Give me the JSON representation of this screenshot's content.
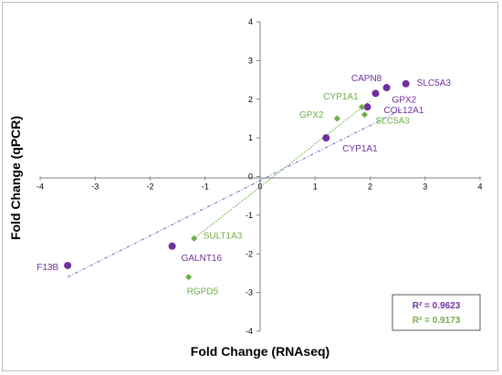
{
  "chart_data": {
    "type": "scatter",
    "title": "",
    "xlabel": "Fold Change (RNAseq)",
    "ylabel": "Fold Change (qPCR)",
    "xlim": [
      -4,
      4
    ],
    "ylim": [
      -4,
      4
    ],
    "x_ticks": [
      "-4",
      "-3",
      "-2",
      "-1",
      "0",
      "1",
      "2",
      "3",
      "4"
    ],
    "y_ticks": [
      "-4",
      "-3",
      "-2",
      "-1",
      "0",
      "1",
      "2",
      "3",
      "4"
    ],
    "grid": false,
    "series": [
      {
        "marker": "circle",
        "color": "#7030a0",
        "trendline_color": "#7b7bc8",
        "r2_label": "R² = 0.9623",
        "trendline": [
          [
            -3.5,
            -2.6
          ],
          [
            2.6,
            1.75
          ]
        ],
        "points": [
          {
            "label": "SLC5A3",
            "x": 2.65,
            "y": 2.4
          },
          {
            "label": "CAPN8",
            "x": 2.3,
            "y": 2.3
          },
          {
            "label": "GPX2",
            "x": 2.1,
            "y": 2.15
          },
          {
            "label": "COL12A1",
            "x": 1.95,
            "y": 1.8
          },
          {
            "label": "CYP1A1",
            "x": 1.2,
            "y": 1.0
          },
          {
            "label": "GALNT16",
            "x": -1.6,
            "y": -1.8
          },
          {
            "label": "F13B",
            "x": -3.5,
            "y": -2.3
          }
        ]
      },
      {
        "marker": "diamond",
        "color": "#70ad47",
        "trendline_color": "#70ad47",
        "r2_label": "R² = 0.9173",
        "trendline": [
          [
            -1.2,
            -1.6
          ],
          [
            2.0,
            1.95
          ]
        ],
        "points": [
          {
            "label": "CYP1A1",
            "x": 1.85,
            "y": 1.8
          },
          {
            "label": "GPX2",
            "x": 1.4,
            "y": 1.5
          },
          {
            "label": "SLC5A3",
            "x": 1.9,
            "y": 1.6
          },
          {
            "label": "SULT1A3",
            "x": -1.2,
            "y": -1.6
          },
          {
            "label": "RGPD5",
            "x": -1.3,
            "y": -2.6
          }
        ]
      }
    ]
  }
}
